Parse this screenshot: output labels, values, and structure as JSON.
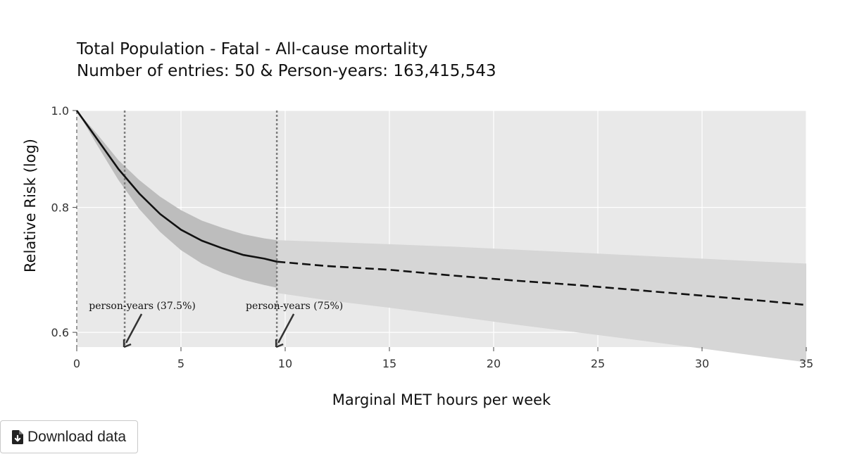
{
  "chart_data": {
    "type": "line",
    "title": "Total Population - Fatal - All-cause mortality",
    "subtitle": "Number of entries: 50 & Person-years: 163,415,543",
    "xlabel": "Marginal MET hours per week",
    "ylabel": "Relative Risk (log)",
    "xlim": [
      0,
      35
    ],
    "ylim": [
      0.58,
      1.0
    ],
    "y_scale": "log",
    "grid": true,
    "x_ticks": [
      0,
      5,
      10,
      15,
      20,
      25,
      30,
      35
    ],
    "x_tick_labels": [
      "0",
      "5",
      "10",
      "15",
      "20",
      "25",
      "30",
      "35"
    ],
    "y_ticks": [
      0.6,
      0.8,
      1.0
    ],
    "y_tick_labels": [
      "0.6",
      "0.8",
      "1.0"
    ],
    "series": [
      {
        "style": "solid",
        "x": [
          0,
          1,
          2,
          3,
          4,
          5,
          6,
          7,
          8,
          9,
          9.6
        ],
        "y": [
          1.0,
          0.935,
          0.874,
          0.826,
          0.788,
          0.76,
          0.741,
          0.728,
          0.717,
          0.711,
          0.706
        ],
        "ci_lower": [
          1.0,
          0.922,
          0.852,
          0.797,
          0.756,
          0.725,
          0.703,
          0.688,
          0.677,
          0.669,
          0.665
        ],
        "ci_upper": [
          1.0,
          0.946,
          0.892,
          0.852,
          0.82,
          0.795,
          0.776,
          0.763,
          0.752,
          0.745,
          0.742
        ]
      },
      {
        "style": "dashed",
        "x": [
          9.6,
          12,
          15,
          18,
          21,
          24,
          27,
          30,
          33,
          35
        ],
        "y": [
          0.706,
          0.699,
          0.693,
          0.684,
          0.676,
          0.669,
          0.661,
          0.653,
          0.645,
          0.639
        ],
        "ci_lower": [
          0.657,
          0.646,
          0.635,
          0.623,
          0.611,
          0.6,
          0.589,
          0.578,
          0.567,
          0.56
        ],
        "ci_upper": [
          0.742,
          0.739,
          0.735,
          0.731,
          0.726,
          0.721,
          0.716,
          0.711,
          0.706,
          0.703
        ]
      }
    ],
    "reference_lines": [
      {
        "x": 0,
        "style": "dashed"
      },
      {
        "x": 2.3,
        "style": "dotted"
      },
      {
        "x": 9.6,
        "style": "dotted"
      }
    ],
    "annotations": [
      {
        "text": "person-years (37.5%)",
        "x": 2.3
      },
      {
        "text": "person-years (75%)",
        "x": 9.6
      }
    ],
    "colors": {
      "plot_bg": "#e9e9e9",
      "ci_solid": "#bdbdbd",
      "ci_dashed": "#d6d6d6",
      "line": "#111111",
      "grid": "#ffffff",
      "ref_line": "#7f7f7f"
    }
  },
  "download": {
    "label": "Download data",
    "icon": "file-download-icon"
  }
}
